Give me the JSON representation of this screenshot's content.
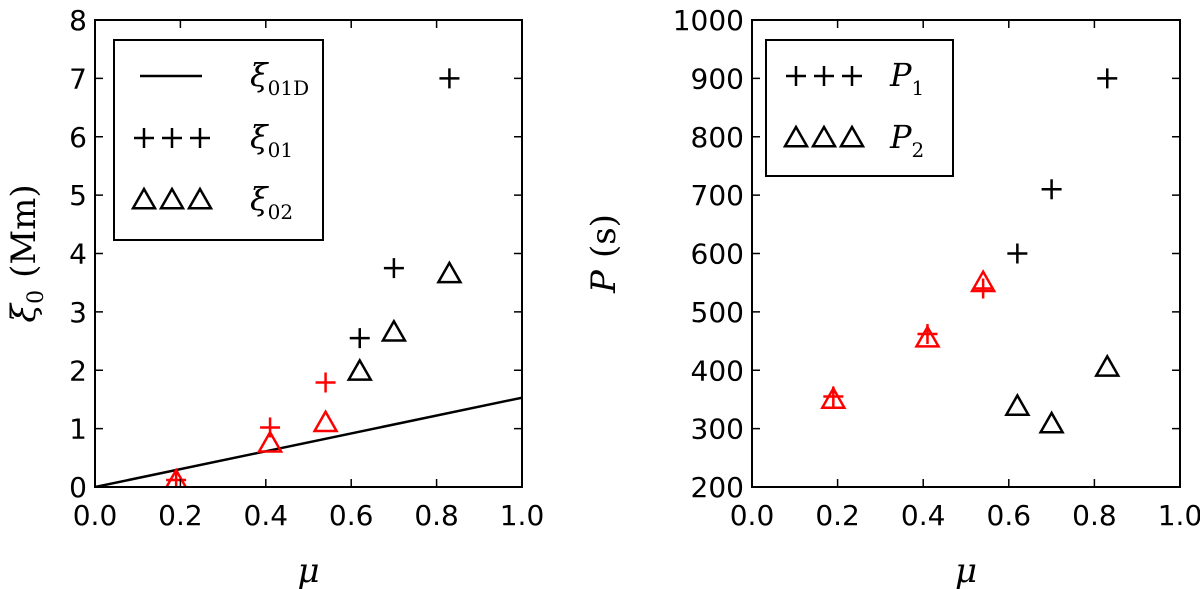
{
  "chart_data": [
    {
      "type": "scatter",
      "xlabel": "μ",
      "ylabel": {
        "symbol": "ξ",
        "sub": "0",
        "unit": "(Mm)"
      },
      "xlim": [
        0.0,
        1.0
      ],
      "ylim": [
        0,
        8
      ],
      "xticks": [
        "0.0",
        "0.2",
        "0.4",
        "0.6",
        "0.8",
        "1.0"
      ],
      "yticks": [
        "0",
        "1",
        "2",
        "3",
        "4",
        "5",
        "6",
        "7",
        "8"
      ],
      "legend_position": "upper-left",
      "series": [
        {
          "name": "ξ01D",
          "label": {
            "symbol": "ξ",
            "sub": "01D"
          },
          "kind": "line",
          "color": "#000000",
          "x": [
            0.0,
            1.0
          ],
          "y": [
            0.0,
            1.53
          ]
        },
        {
          "name": "ξ01",
          "label": {
            "symbol": "ξ",
            "sub": "01"
          },
          "kind": "plus",
          "points": [
            {
              "x": 0.19,
              "y": 0.12,
              "color": "#ff0000"
            },
            {
              "x": 0.41,
              "y": 1.02,
              "color": "#ff0000"
            },
            {
              "x": 0.54,
              "y": 1.79,
              "color": "#ff0000"
            },
            {
              "x": 0.62,
              "y": 2.55,
              "color": "#000000"
            },
            {
              "x": 0.7,
              "y": 3.75,
              "color": "#000000"
            },
            {
              "x": 0.83,
              "y": 7.0,
              "color": "#000000"
            }
          ]
        },
        {
          "name": "ξ02",
          "label": {
            "symbol": "ξ",
            "sub": "02"
          },
          "kind": "triangle",
          "points": [
            {
              "x": 0.19,
              "y": 0.1,
              "color": "#ff0000"
            },
            {
              "x": 0.41,
              "y": 0.75,
              "color": "#ff0000"
            },
            {
              "x": 0.54,
              "y": 1.1,
              "color": "#ff0000"
            },
            {
              "x": 0.62,
              "y": 1.98,
              "color": "#000000"
            },
            {
              "x": 0.7,
              "y": 2.65,
              "color": "#000000"
            },
            {
              "x": 0.83,
              "y": 3.65,
              "color": "#000000"
            }
          ]
        }
      ]
    },
    {
      "type": "scatter",
      "xlabel": "μ",
      "ylabel": {
        "symbol": "P",
        "unit": "(s)"
      },
      "xlim": [
        0.0,
        1.0
      ],
      "ylim": [
        200,
        1000
      ],
      "xticks": [
        "0.0",
        "0.2",
        "0.4",
        "0.6",
        "0.8",
        "1.0"
      ],
      "yticks": [
        "200",
        "300",
        "400",
        "500",
        "600",
        "700",
        "800",
        "900",
        "1000"
      ],
      "legend_position": "upper-left",
      "series": [
        {
          "name": "P1",
          "label": {
            "symbol": "P",
            "sub": "1"
          },
          "kind": "plus",
          "points": [
            {
              "x": 0.19,
              "y": 355,
              "color": "#ff0000"
            },
            {
              "x": 0.41,
              "y": 462,
              "color": "#ff0000"
            },
            {
              "x": 0.54,
              "y": 540,
              "color": "#ff0000"
            },
            {
              "x": 0.62,
              "y": 600,
              "color": "#000000"
            },
            {
              "x": 0.7,
              "y": 710,
              "color": "#000000"
            },
            {
              "x": 0.83,
              "y": 900,
              "color": "#000000"
            }
          ]
        },
        {
          "name": "P2",
          "label": {
            "symbol": "P",
            "sub": "2"
          },
          "kind": "triangle",
          "points": [
            {
              "x": 0.19,
              "y": 350,
              "color": "#ff0000"
            },
            {
              "x": 0.41,
              "y": 455,
              "color": "#ff0000"
            },
            {
              "x": 0.54,
              "y": 550,
              "color": "#ff0000"
            },
            {
              "x": 0.62,
              "y": 338,
              "color": "#000000"
            },
            {
              "x": 0.7,
              "y": 308,
              "color": "#000000"
            },
            {
              "x": 0.83,
              "y": 405,
              "color": "#000000"
            }
          ]
        }
      ]
    }
  ]
}
